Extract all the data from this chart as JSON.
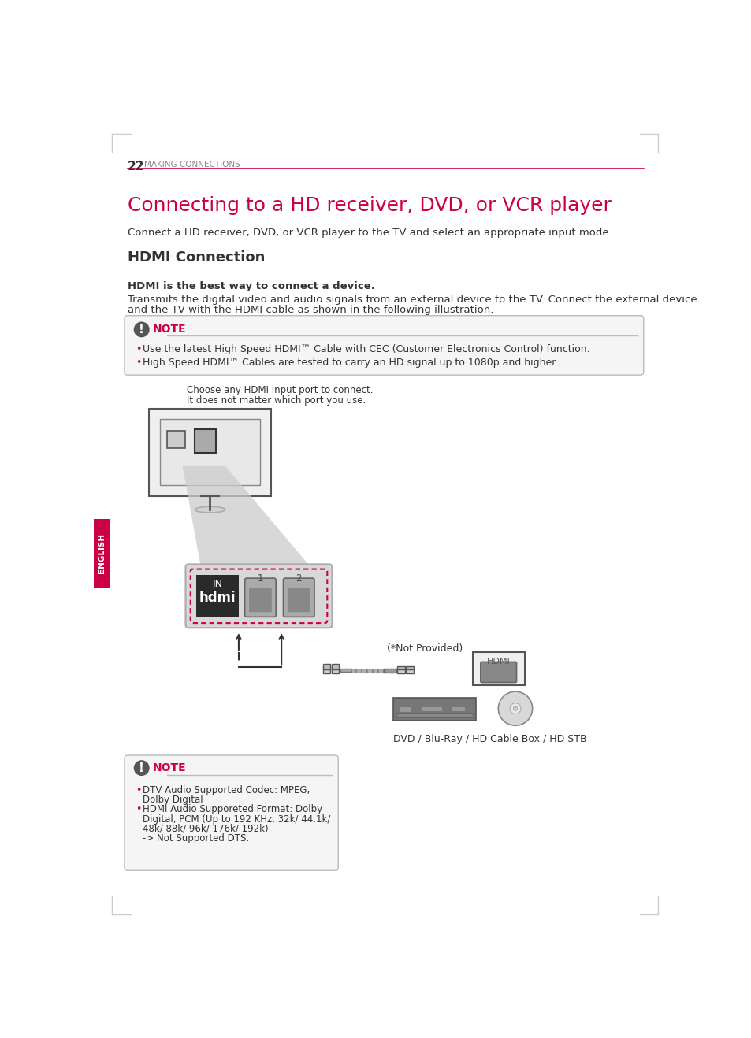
{
  "page_number": "22",
  "page_header": "MAKING CONNECTIONS",
  "main_title": "Connecting to a HD receiver, DVD, or VCR player",
  "subtitle": "HDMI Connection",
  "intro_text": "Connect a HD receiver, DVD, or VCR player to the TV and select an appropriate input mode.",
  "bold_text": "HDMI is the best way to connect a device.",
  "body_text_1": "Transmits the digital video and audio signals from an external device to the TV. Connect the external device",
  "body_text_2": "and the TV with the HDMI cable as shown in the following illustration.",
  "note_bullets": [
    "Use the latest High Speed HDMI™ Cable with CEC (Customer Electronics Control) function.",
    "High Speed HDMI™ Cables are tested to carry an HD signal up to 1080p and higher."
  ],
  "diagram_caption_1": "Choose any HDMI input port to connect.",
  "diagram_caption_2": "It does not matter which port you use.",
  "not_provided_label": "(*Not Provided)",
  "dvd_label": "DVD / Blu-Ray / HD Cable Box / HD STB",
  "bottom_note_bullet_texts": [
    "DTV Audio Supported Codec: MPEG,",
    "Dolby Digital",
    "HDMI Audio Supporeted Format: Dolby",
    "Digital, PCM (Up to 192 KHz, 32k/ 44.1k/",
    "48k/ 88k/ 96k/ 176k/ 192k)",
    "-> Not Supported DTS."
  ],
  "bottom_note_bullet_markers": [
    true,
    false,
    true,
    false,
    false,
    false
  ],
  "english_tab": "ENGLISH",
  "main_title_color": "#cc0044",
  "header_color": "#888888",
  "note_color": "#cc0044",
  "english_tab_color": "#cc0044",
  "line_color": "#cc0044",
  "bullet_color": "#cc0044",
  "bg_color": "#ffffff",
  "text_color": "#333333",
  "border_color": "#bbbbbb",
  "note_border_color": "#bbbbbb"
}
